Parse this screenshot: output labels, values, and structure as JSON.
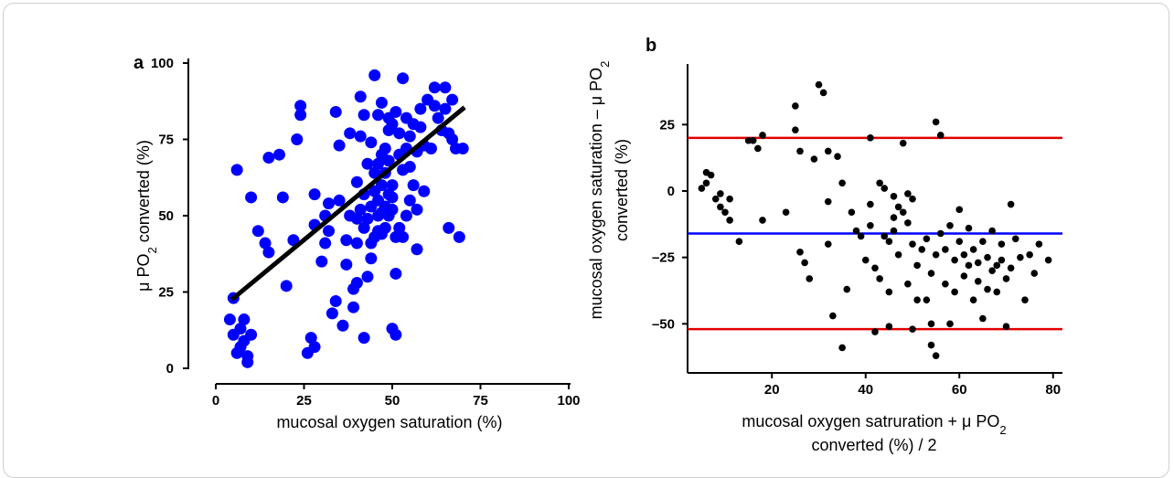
{
  "chart_data": [
    {
      "panel_label": "a",
      "type": "scatter",
      "xlabel": "mucosal oxygen saturation (%)",
      "ylabel_main": "μ PO",
      "ylabel_sub": "2",
      "ylabel_tail": " converted (%)",
      "xlim": [
        0,
        100
      ],
      "ylim": [
        0,
        100
      ],
      "x_ticks": [
        "0",
        "25",
        "50",
        "75",
        "100"
      ],
      "y_ticks": [
        "0",
        "25",
        "50",
        "75",
        "100"
      ],
      "point_color": "#0000ff",
      "line_color": "#000000",
      "regression_line": {
        "x": [
          4.5,
          70.5
        ],
        "y": [
          22.5,
          85.5
        ]
      },
      "points": [
        [
          5,
          23
        ],
        [
          4,
          16
        ],
        [
          5,
          11
        ],
        [
          6,
          5
        ],
        [
          7,
          13
        ],
        [
          8,
          9
        ],
        [
          9,
          4
        ],
        [
          8,
          16
        ],
        [
          10,
          11
        ],
        [
          9,
          2
        ],
        [
          7,
          7
        ],
        [
          6,
          65
        ],
        [
          10,
          56
        ],
        [
          12,
          45
        ],
        [
          14,
          41
        ],
        [
          15,
          38
        ],
        [
          15,
          69
        ],
        [
          18,
          70
        ],
        [
          19,
          56
        ],
        [
          20,
          27
        ],
        [
          22,
          42
        ],
        [
          23,
          75
        ],
        [
          24,
          86
        ],
        [
          24,
          83
        ],
        [
          26,
          5
        ],
        [
          27,
          10
        ],
        [
          28,
          7
        ],
        [
          28,
          57
        ],
        [
          28,
          47
        ],
        [
          30,
          35
        ],
        [
          31,
          41
        ],
        [
          31,
          50
        ],
        [
          32,
          45
        ],
        [
          32,
          54
        ],
        [
          33,
          18
        ],
        [
          34,
          22
        ],
        [
          34,
          84
        ],
        [
          35,
          73
        ],
        [
          35,
          55
        ],
        [
          36,
          14
        ],
        [
          37,
          42
        ],
        [
          37,
          34
        ],
        [
          38,
          50
        ],
        [
          38,
          77
        ],
        [
          39,
          20
        ],
        [
          39,
          26
        ],
        [
          40,
          28
        ],
        [
          40,
          41
        ],
        [
          40,
          49
        ],
        [
          40,
          61
        ],
        [
          41,
          76
        ],
        [
          41,
          89
        ],
        [
          41,
          52
        ],
        [
          42,
          10
        ],
        [
          42,
          46
        ],
        [
          42,
          57
        ],
        [
          42,
          83
        ],
        [
          43,
          30
        ],
        [
          43,
          49
        ],
        [
          43,
          67
        ],
        [
          44,
          36
        ],
        [
          44,
          41
        ],
        [
          44,
          53
        ],
        [
          44,
          74
        ],
        [
          45,
          96
        ],
        [
          45,
          43
        ],
        [
          45,
          58
        ],
        [
          45,
          64
        ],
        [
          46,
          45
        ],
        [
          46,
          50
        ],
        [
          46,
          55
        ],
        [
          46,
          67
        ],
        [
          46,
          83
        ],
        [
          47,
          44
        ],
        [
          47,
          51
        ],
        [
          47,
          60
        ],
        [
          47,
          70
        ],
        [
          47,
          87
        ],
        [
          48,
          46
        ],
        [
          48,
          53
        ],
        [
          48,
          64
        ],
        [
          48,
          72
        ],
        [
          49,
          50
        ],
        [
          49,
          57
        ],
        [
          49,
          68
        ],
        [
          49,
          78
        ],
        [
          49,
          82
        ],
        [
          50,
          13
        ],
        [
          50,
          52
        ],
        [
          50,
          56
        ],
        [
          50,
          60
        ],
        [
          50,
          80
        ],
        [
          51,
          11
        ],
        [
          51,
          31
        ],
        [
          51,
          43
        ],
        [
          51,
          84
        ],
        [
          52,
          46
        ],
        [
          52,
          70
        ],
        [
          52,
          77
        ],
        [
          53,
          95
        ],
        [
          53,
          43
        ],
        [
          53,
          65
        ],
        [
          54,
          50
        ],
        [
          54,
          72
        ],
        [
          54,
          82
        ],
        [
          55,
          55
        ],
        [
          55,
          66
        ],
        [
          55,
          76
        ],
        [
          56,
          60
        ],
        [
          56,
          80
        ],
        [
          57,
          39
        ],
        [
          57,
          52
        ],
        [
          57,
          71
        ],
        [
          58,
          79
        ],
        [
          58,
          85
        ],
        [
          59,
          58
        ],
        [
          59,
          73
        ],
        [
          60,
          88
        ],
        [
          61,
          72
        ],
        [
          62,
          92
        ],
        [
          62,
          86
        ],
        [
          63,
          82
        ],
        [
          64,
          78
        ],
        [
          65,
          85
        ],
        [
          65,
          92
        ],
        [
          66,
          77
        ],
        [
          66,
          46
        ],
        [
          67,
          88
        ],
        [
          67,
          75
        ],
        [
          68,
          72
        ],
        [
          69,
          43
        ],
        [
          70,
          72
        ]
      ]
    },
    {
      "panel_label": "b",
      "type": "scatter",
      "xlabel_main": "mucosal oxygen satruration + μ PO",
      "xlabel_sub": "2",
      "xlabel_line2": "converted (%) / 2",
      "ylabel_line1_main": "mucosal oxygen saturation – μ PO",
      "ylabel_line1_sub": "2",
      "ylabel_line2": "converted (%)",
      "xlim": [
        2,
        82
      ],
      "ylim": [
        -65,
        43
      ],
      "x_ticks": [
        "20",
        "40",
        "60",
        "80"
      ],
      "y_ticks": [
        "-50",
        "-25",
        "0",
        "25"
      ],
      "y_tick_labels": [
        "–50",
        "–25",
        "0",
        "25"
      ],
      "point_color": "#000000",
      "hlines": [
        {
          "y": 20,
          "color": "#e00000"
        },
        {
          "y": -16,
          "color": "#0000ff"
        },
        {
          "y": -52,
          "color": "#e00000"
        }
      ],
      "points": [
        [
          5,
          1
        ],
        [
          6,
          3
        ],
        [
          6,
          7
        ],
        [
          7,
          6
        ],
        [
          8,
          -3
        ],
        [
          9,
          -1
        ],
        [
          9,
          -6
        ],
        [
          10,
          -8
        ],
        [
          11,
          -11
        ],
        [
          11,
          -3
        ],
        [
          13,
          -19
        ],
        [
          15,
          19
        ],
        [
          16,
          19
        ],
        [
          17,
          16
        ],
        [
          18,
          21
        ],
        [
          18,
          -11
        ],
        [
          23,
          -8
        ],
        [
          25,
          32
        ],
        [
          25,
          23
        ],
        [
          26,
          15
        ],
        [
          26,
          -23
        ],
        [
          27,
          -27
        ],
        [
          28,
          -33
        ],
        [
          29,
          12
        ],
        [
          30,
          40
        ],
        [
          31,
          37
        ],
        [
          32,
          15
        ],
        [
          32,
          -4
        ],
        [
          32,
          -20
        ],
        [
          33,
          -47
        ],
        [
          34,
          13
        ],
        [
          35,
          -59
        ],
        [
          35,
          3
        ],
        [
          36,
          -37
        ],
        [
          37,
          -8
        ],
        [
          38,
          -15
        ],
        [
          39,
          -17
        ],
        [
          40,
          -26
        ],
        [
          41,
          20
        ],
        [
          41,
          -5
        ],
        [
          41,
          -13
        ],
        [
          42,
          -29
        ],
        [
          42,
          -53
        ],
        [
          43,
          3
        ],
        [
          43,
          -33
        ],
        [
          44,
          -17
        ],
        [
          44,
          1
        ],
        [
          45,
          -51
        ],
        [
          45,
          -19
        ],
        [
          45,
          -38
        ],
        [
          46,
          -2
        ],
        [
          46,
          -10
        ],
        [
          46,
          -15
        ],
        [
          47,
          -6
        ],
        [
          47,
          -24
        ],
        [
          48,
          18
        ],
        [
          48,
          -8
        ],
        [
          49,
          -1
        ],
        [
          49,
          -12
        ],
        [
          49,
          -35
        ],
        [
          50,
          -20
        ],
        [
          50,
          -3
        ],
        [
          50,
          -52
        ],
        [
          51,
          -28
        ],
        [
          51,
          -41
        ],
        [
          52,
          -22
        ],
        [
          53,
          -18
        ],
        [
          53,
          -41
        ],
        [
          54,
          -31
        ],
        [
          54,
          -58
        ],
        [
          54,
          -50
        ],
        [
          55,
          26
        ],
        [
          55,
          -62
        ],
        [
          55,
          -24
        ],
        [
          56,
          21
        ],
        [
          56,
          -16
        ],
        [
          57,
          -22
        ],
        [
          57,
          -35
        ],
        [
          58,
          -50
        ],
        [
          58,
          -13
        ],
        [
          59,
          -26
        ],
        [
          59,
          -38
        ],
        [
          60,
          -7
        ],
        [
          60,
          -19
        ],
        [
          61,
          -32
        ],
        [
          61,
          -24
        ],
        [
          62,
          -28
        ],
        [
          62,
          -14
        ],
        [
          63,
          -41
        ],
        [
          63,
          -22
        ],
        [
          64,
          -34
        ],
        [
          64,
          -27
        ],
        [
          65,
          -48
        ],
        [
          65,
          -19
        ],
        [
          66,
          -37
        ],
        [
          66,
          -25
        ],
        [
          67,
          -30
        ],
        [
          67,
          -15
        ],
        [
          68,
          -28
        ],
        [
          68,
          -38
        ],
        [
          69,
          -20
        ],
        [
          69,
          -26
        ],
        [
          70,
          -51
        ],
        [
          70,
          -33
        ],
        [
          71,
          -5
        ],
        [
          71,
          -29
        ],
        [
          72,
          -18
        ],
        [
          73,
          -25
        ],
        [
          74,
          -41
        ],
        [
          75,
          -24
        ],
        [
          76,
          -31
        ],
        [
          77,
          -20
        ],
        [
          79,
          -26
        ]
      ]
    }
  ]
}
